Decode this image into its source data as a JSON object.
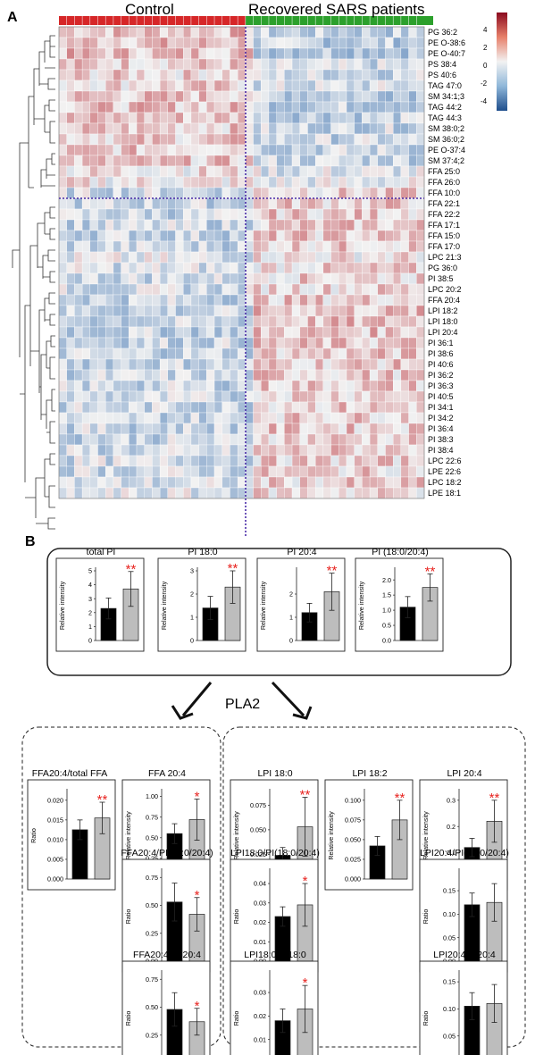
{
  "panel_a": {
    "label": "A",
    "group_labels": [
      "Control",
      "Recovered SARS patients"
    ],
    "group_colors": [
      "#d62728",
      "#2ca02c"
    ],
    "legend": {
      "ticks": [
        "4",
        "2",
        "0",
        "-2",
        "-4"
      ],
      "colors": [
        "#8b0a1f",
        "#e7806a",
        "#f2f2f2",
        "#8fb7d9",
        "#1f4e8c"
      ]
    }
  },
  "panel_b": {
    "label": "B",
    "pathway_label": "PLA2"
  },
  "chart_data": [
    {
      "type": "heatmap",
      "columns": {
        "control": 25,
        "recovered": 22
      },
      "rows": [
        "PG 36:2",
        "PE O-38:6",
        "PE O-40:7",
        "PS 38:4",
        "PS 40:6",
        "TAG 47:0",
        "SM 34:1;3",
        "TAG 44:2",
        "TAG 44:3",
        "SM 38:0;2",
        "SM 36:0;2",
        "PE O-37:4",
        "SM 37:4;2",
        "FFA 25:0",
        "FFA 26:0",
        "FFA 10:0",
        "FFA 22:1",
        "FFA 22:2",
        "FFA 17:1",
        "FFA 15:0",
        "FFA 17:0",
        "LPC 21:3",
        "PG 36:0",
        "PI 38:5",
        "LPC 20:2",
        "FFA 20:4",
        "LPI 18:2",
        "LPI 18:0",
        "LPI 20:4",
        "PI 36:1",
        "PI 38:6",
        "PI 40:6",
        "PI 36:2",
        "PI 36:3",
        "PI 40:5",
        "PI 34:1",
        "PI 34:2",
        "PI 36:4",
        "PI 38:3",
        "PI 38:4",
        "LPC 22:6",
        "LPE 22:6",
        "LPC 18:2",
        "LPE 18:1"
      ],
      "row_trend": [
        0.8,
        0.8,
        0.8,
        0.6,
        0.5,
        0.5,
        0.7,
        0.7,
        0.7,
        0.6,
        0.6,
        0.6,
        0.6,
        0.3,
        0.2,
        -0.5,
        -0.6,
        -0.6,
        -0.6,
        -0.6,
        -0.6,
        -0.3,
        -0.4,
        -0.5,
        -0.5,
        -0.6,
        -0.7,
        -0.7,
        -0.7,
        -0.6,
        -0.6,
        -0.6,
        -0.6,
        -0.6,
        -0.6,
        -0.6,
        -0.6,
        -0.6,
        -0.6,
        -0.6,
        -0.5,
        -0.5,
        -0.5,
        -0.4
      ],
      "scale_range": [
        -4,
        4
      ],
      "divider_after_row": "FFA 26:0"
    },
    {
      "type": "bar",
      "title": "total PI",
      "ylabel": "Relative intensity",
      "categories": [
        "Control",
        "Recovered"
      ],
      "values": [
        2.3,
        3.7
      ],
      "errors": [
        0.75,
        1.25
      ],
      "ylim": [
        0,
        5
      ],
      "yticks": [
        "0",
        "1",
        "2",
        "3",
        "4",
        "5"
      ],
      "significance": "**",
      "colors": [
        "#000000",
        "#bdbdbd"
      ]
    },
    {
      "type": "bar",
      "title": "PI 18:0",
      "ylabel": "Relative intensity",
      "categories": [
        "Control",
        "Recovered"
      ],
      "values": [
        1.4,
        2.3
      ],
      "errors": [
        0.5,
        0.7
      ],
      "ylim": [
        0,
        3
      ],
      "yticks": [
        "0",
        "1",
        "2",
        "3"
      ],
      "significance": "**",
      "colors": [
        "#000000",
        "#bdbdbd"
      ]
    },
    {
      "type": "bar",
      "title": "PI 20:4",
      "ylabel": "Relative intensity",
      "categories": [
        "Control",
        "Recovered"
      ],
      "values": [
        1.2,
        2.1
      ],
      "errors": [
        0.4,
        0.8
      ],
      "ylim": [
        0,
        3
      ],
      "yticks": [
        "0",
        "1",
        "2"
      ],
      "significance": "**",
      "colors": [
        "#000000",
        "#bdbdbd"
      ]
    },
    {
      "type": "bar",
      "title": "PI (18:0/20:4)",
      "ylabel": "Relative intensity",
      "categories": [
        "Control",
        "Recovered"
      ],
      "values": [
        1.1,
        1.75
      ],
      "errors": [
        0.35,
        0.45
      ],
      "ylim": [
        0,
        2.3
      ],
      "yticks": [
        "0.0",
        "0.5",
        "1.0",
        "1.5",
        "2.0"
      ],
      "significance": "**",
      "colors": [
        "#000000",
        "#bdbdbd"
      ]
    },
    {
      "type": "bar",
      "title": "FFA20:4/total FFA",
      "ylabel": "Ratio",
      "categories": [
        "Control",
        "Recovered"
      ],
      "values": [
        0.0125,
        0.0155
      ],
      "errors": [
        0.0025,
        0.004
      ],
      "ylim": [
        0,
        0.022
      ],
      "yticks": [
        "0.000",
        "0.005",
        "0.010",
        "0.015",
        "0.020"
      ],
      "significance": "**",
      "colors": [
        "#000000",
        "#bdbdbd"
      ]
    },
    {
      "type": "bar",
      "title": "FFA 20:4",
      "ylabel": "Relative intensity",
      "categories": [
        "Control",
        "Recovered"
      ],
      "values": [
        0.55,
        0.72
      ],
      "errors": [
        0.12,
        0.25
      ],
      "ylim": [
        0,
        1.05
      ],
      "yticks": [
        "0.00",
        "0.25",
        "0.50",
        "0.75",
        "1.00"
      ],
      "significance": "*",
      "colors": [
        "#000000",
        "#bdbdbd"
      ]
    },
    {
      "type": "bar",
      "title": "LPI 18:0",
      "ylabel": "Relative intensity",
      "categories": [
        "Control",
        "Recovered"
      ],
      "values": [
        0.024,
        0.053
      ],
      "errors": [
        0.008,
        0.03
      ],
      "ylim": [
        0,
        0.088
      ],
      "yticks": [
        "0.000",
        "0.025",
        "0.050",
        "0.075"
      ],
      "significance": "**",
      "colors": [
        "#000000",
        "#bdbdbd"
      ]
    },
    {
      "type": "bar",
      "title": "LPI 18:2",
      "ylabel": "Relative intensity",
      "categories": [
        "Control",
        "Recovered"
      ],
      "values": [
        0.042,
        0.075
      ],
      "errors": [
        0.012,
        0.025
      ],
      "ylim": [
        0,
        0.11
      ],
      "yticks": [
        "0.000",
        "0.025",
        "0.050",
        "0.075",
        "0.100"
      ],
      "significance": "**",
      "colors": [
        "#000000",
        "#bdbdbd"
      ]
    },
    {
      "type": "bar",
      "title": "LPI 20:4",
      "ylabel": "Relative intensity",
      "categories": [
        "Control",
        "Recovered"
      ],
      "values": [
        0.12,
        0.22
      ],
      "errors": [
        0.035,
        0.08
      ],
      "ylim": [
        0,
        0.33
      ],
      "yticks": [
        "0",
        "0.1",
        "0.2",
        "0.3"
      ],
      "significance": "**",
      "colors": [
        "#000000",
        "#bdbdbd"
      ]
    },
    {
      "type": "bar",
      "title": "FFA20:4/PI(18:0/20:4)",
      "ylabel": "Ratio",
      "categories": [
        "Control",
        "Recovered"
      ],
      "values": [
        0.53,
        0.42
      ],
      "errors": [
        0.17,
        0.15
      ],
      "ylim": [
        0,
        0.8
      ],
      "yticks": [
        "0.00",
        "0.25",
        "0.50",
        "0.75"
      ],
      "significance": "*",
      "colors": [
        "#000000",
        "#bdbdbd"
      ]
    },
    {
      "type": "bar",
      "title": "LPI18:0/PI(18:0/20:4)",
      "ylabel": "Ratio",
      "categories": [
        "Control",
        "Recovered"
      ],
      "values": [
        0.023,
        0.029
      ],
      "errors": [
        0.005,
        0.011
      ],
      "ylim": [
        0,
        0.046
      ],
      "yticks": [
        "0.00",
        "0.01",
        "0.02",
        "0.03",
        "0.04"
      ],
      "significance": "*",
      "colors": [
        "#000000",
        "#bdbdbd"
      ]
    },
    {
      "type": "bar",
      "title": "LPI20:4/PI(18:0/20:4)",
      "ylabel": "Ratio",
      "categories": [
        "Control",
        "Recovered"
      ],
      "values": [
        0.12,
        0.125
      ],
      "errors": [
        0.025,
        0.04
      ],
      "ylim": [
        0,
        0.19
      ],
      "yticks": [
        "0.00",
        "0.05",
        "0.10",
        "0.15"
      ],
      "significance": "",
      "colors": [
        "#000000",
        "#bdbdbd"
      ]
    },
    {
      "type": "bar",
      "title": "FFA20:4/PI 20:4",
      "ylabel": "Ratio",
      "categories": [
        "Control",
        "Recovered"
      ],
      "values": [
        0.48,
        0.37
      ],
      "errors": [
        0.15,
        0.12
      ],
      "ylim": [
        0,
        0.8
      ],
      "yticks": [
        "0.00",
        "0.25",
        "0.50",
        "0.75"
      ],
      "significance": "*",
      "colors": [
        "#000000",
        "#bdbdbd"
      ]
    },
    {
      "type": "bar",
      "title": "LPI18:0/PI18:0",
      "ylabel": "Ratio",
      "categories": [
        "Control",
        "Recovered"
      ],
      "values": [
        0.018,
        0.023
      ],
      "errors": [
        0.005,
        0.01
      ],
      "ylim": [
        0,
        0.038
      ],
      "yticks": [
        "0.00",
        "0.01",
        "0.02",
        "0.03"
      ],
      "significance": "*",
      "colors": [
        "#000000",
        "#bdbdbd"
      ]
    },
    {
      "type": "bar",
      "title": "LPI20:4/PI20:4",
      "ylabel": "Ratio",
      "categories": [
        "Control",
        "Recovered"
      ],
      "values": [
        0.105,
        0.11
      ],
      "errors": [
        0.025,
        0.035
      ],
      "ylim": [
        0,
        0.165
      ],
      "yticks": [
        "0.05",
        "0.10",
        "0.15"
      ],
      "significance": "",
      "colors": [
        "#000000",
        "#bdbdbd"
      ]
    }
  ]
}
